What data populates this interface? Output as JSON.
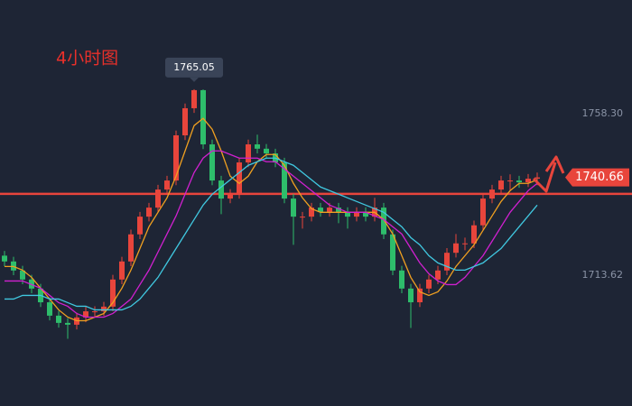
{
  "chart_data": {
    "type": "candlestick",
    "title": "4小时图",
    "categories": [
      null,
      null,
      null,
      null,
      null,
      null,
      null,
      null,
      null,
      null,
      null,
      null,
      null,
      null,
      null,
      null,
      null,
      null,
      null,
      null,
      null,
      null,
      null,
      null,
      null,
      null,
      null,
      null,
      null,
      null,
      null,
      null,
      null,
      null,
      null,
      null,
      null,
      null,
      null,
      null,
      null,
      null,
      null,
      null,
      null,
      null,
      null,
      null,
      null,
      null,
      null,
      null,
      null,
      null,
      null,
      null,
      null,
      null,
      null,
      null
    ],
    "open": [
      1719.0,
      1717.4,
      1714.9,
      1712.4,
      1709.9,
      1706.1,
      1702.4,
      1700.4,
      1699.9,
      1701.9,
      1703.6,
      1703.6,
      1704.9,
      1712.4,
      1717.4,
      1724.9,
      1729.8,
      1732.3,
      1737.3,
      1739.8,
      1752.3,
      1759.8,
      1764.8,
      1749.8,
      1739.8,
      1734.8,
      1736.1,
      1744.8,
      1749.8,
      1748.6,
      1747.3,
      1744.8,
      1734.8,
      1729.8,
      1729.8,
      1732.3,
      1731.1,
      1732.3,
      1731.1,
      1729.8,
      1731.1,
      1729.8,
      1732.3,
      1724.9,
      1714.9,
      1709.9,
      1706.1,
      1709.9,
      1712.4,
      1714.9,
      1719.8,
      1722.4,
      1722.4,
      1727.4,
      1734.8,
      1737.3,
      1739.8,
      1739.8,
      1739.3,
      1740.3
    ],
    "high": [
      1720.3,
      1718.7,
      1716.2,
      1713.7,
      1711.2,
      1707.4,
      1703.7,
      1701.7,
      1703.2,
      1704.9,
      1705.0,
      1706.2,
      1713.7,
      1718.7,
      1726.2,
      1731.1,
      1733.6,
      1738.6,
      1741.1,
      1753.6,
      1761.1,
      1765.05,
      1765.0,
      1751.1,
      1741.1,
      1737.4,
      1746.1,
      1751.1,
      1752.5,
      1749.9,
      1748.6,
      1746.1,
      1736.1,
      1731.1,
      1733.6,
      1733.6,
      1733.6,
      1733.6,
      1732.4,
      1732.4,
      1732.4,
      1735.0,
      1733.6,
      1726.2,
      1716.2,
      1711.2,
      1711.2,
      1713.7,
      1716.2,
      1721.1,
      1725.0,
      1724.0,
      1728.7,
      1736.1,
      1738.6,
      1741.1,
      1741.5,
      1741.1,
      1741.6,
      1742.0
    ],
    "low": [
      1716.1,
      1713.6,
      1711.1,
      1708.6,
      1704.8,
      1701.1,
      1699.1,
      1696.0,
      1698.6,
      1700.6,
      1702.0,
      1702.3,
      1703.6,
      1711.1,
      1716.1,
      1723.6,
      1728.5,
      1731.0,
      1736.0,
      1738.5,
      1751.0,
      1758.5,
      1748.5,
      1738.5,
      1730.5,
      1733.5,
      1734.8,
      1743.5,
      1747.3,
      1746.0,
      1743.5,
      1733.5,
      1722.0,
      1726.5,
      1728.5,
      1729.8,
      1729.8,
      1728.0,
      1726.5,
      1728.5,
      1728.5,
      1728.5,
      1723.6,
      1713.6,
      1708.6,
      1699.0,
      1704.8,
      1708.6,
      1711.1,
      1713.6,
      1718.5,
      1720.5,
      1721.1,
      1726.1,
      1733.5,
      1736.0,
      1737.0,
      1737.8,
      1738.0,
      1738.5
    ],
    "close": [
      1717.4,
      1714.9,
      1712.4,
      1709.9,
      1706.1,
      1702.4,
      1700.4,
      1699.9,
      1701.9,
      1703.6,
      1703.6,
      1704.9,
      1712.4,
      1717.4,
      1724.9,
      1729.8,
      1732.3,
      1737.3,
      1739.8,
      1752.3,
      1759.8,
      1764.8,
      1749.8,
      1739.8,
      1734.8,
      1736.1,
      1744.8,
      1749.8,
      1748.6,
      1747.3,
      1744.8,
      1734.8,
      1729.8,
      1729.8,
      1732.3,
      1731.1,
      1732.3,
      1731.1,
      1729.8,
      1731.1,
      1729.8,
      1732.3,
      1724.9,
      1714.9,
      1709.9,
      1706.1,
      1709.9,
      1712.4,
      1714.9,
      1719.8,
      1722.4,
      1722.4,
      1727.4,
      1734.8,
      1737.3,
      1739.8,
      1739.8,
      1739.3,
      1740.3,
      1740.66
    ],
    "up_color": "#e8453c",
    "down_color": "#2ebd6b",
    "ma": [
      {
        "color": "#f0a020",
        "values": [
          1716,
          1716,
          1715,
          1713,
          1710,
          1707,
          1704,
          1702,
          1701,
          1701,
          1702,
          1703,
          1706,
          1710,
          1715,
          1721,
          1727,
          1731,
          1735,
          1741,
          1748,
          1755,
          1757,
          1754,
          1748,
          1741,
          1739,
          1741,
          1745,
          1747,
          1747,
          1744,
          1739,
          1735,
          1732,
          1731,
          1731,
          1731,
          1731,
          1731,
          1731,
          1731,
          1729,
          1725,
          1719,
          1713,
          1709,
          1708,
          1709,
          1712,
          1716,
          1719,
          1722,
          1726,
          1730,
          1734,
          1737,
          1739,
          1739,
          1740
        ]
      },
      {
        "color": "#d020d0",
        "values": [
          1712,
          1712,
          1712,
          1711,
          1710,
          1708,
          1706,
          1705,
          1703,
          1702,
          1702,
          1702,
          1703,
          1705,
          1707,
          1711,
          1715,
          1720,
          1725,
          1730,
          1736,
          1742,
          1746,
          1748,
          1748,
          1747,
          1746,
          1746,
          1746,
          1745,
          1745,
          1743,
          1741,
          1739,
          1737,
          1735,
          1733,
          1732,
          1731,
          1731,
          1731,
          1730,
          1729,
          1727,
          1725,
          1721,
          1717,
          1714,
          1712,
          1711,
          1711,
          1713,
          1716,
          1719,
          1723,
          1727,
          1731,
          1734,
          1737,
          1739
        ]
      },
      {
        "color": "#40c8e0",
        "values": [
          1707,
          1707,
          1708,
          1708,
          1708,
          1707,
          1707,
          1706,
          1705,
          1705,
          1704,
          1704,
          1704,
          1704,
          1705,
          1707,
          1710,
          1713,
          1717,
          1721,
          1725,
          1729,
          1733,
          1736,
          1738,
          1740,
          1742,
          1744,
          1745,
          1746,
          1746,
          1745,
          1744,
          1742,
          1740,
          1738,
          1737,
          1736,
          1735,
          1734,
          1733,
          1732,
          1731,
          1729,
          1727,
          1724,
          1722,
          1719,
          1717,
          1716,
          1715,
          1715,
          1716,
          1717,
          1719,
          1721,
          1724,
          1727,
          1730,
          1733
        ]
      }
    ],
    "level": 1736.1,
    "level_color": "#e8453c",
    "ylim": [
      1677.4,
      1789.75
    ],
    "yticks": [
      {
        "value": 1758.3,
        "label": "1758.30"
      },
      {
        "value": 1713.62,
        "label": "1713.62"
      }
    ],
    "grid": false
  }
}
